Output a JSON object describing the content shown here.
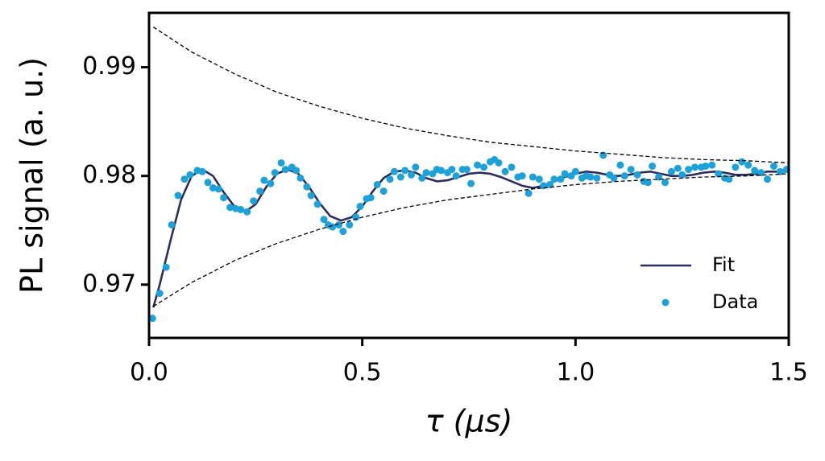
{
  "chart_data": {
    "type": "line",
    "xlabel": "τ (μs)",
    "ylabel": "PL signal (a. u.)",
    "xlim": [
      0,
      1.5
    ],
    "ylim": [
      0.9651,
      0.995
    ],
    "xticks": [
      {
        "value": 0,
        "label": "0.0"
      },
      0.5,
      {
        "value": 1,
        "label": "1.0"
      },
      1.5
    ],
    "yticks": [
      0.97,
      0.98,
      0.99
    ],
    "legend": "lower right",
    "series": [
      {
        "name": "Fit",
        "color": "#2b2d5c",
        "style": "solid",
        "x": [
          0.01,
          0.025,
          0.05,
          0.075,
          0.1,
          0.125,
          0.15,
          0.175,
          0.2,
          0.225,
          0.25,
          0.275,
          0.3,
          0.325,
          0.35,
          0.375,
          0.4,
          0.425,
          0.45,
          0.475,
          0.5,
          0.525,
          0.55,
          0.575,
          0.6,
          0.625,
          0.65,
          0.675,
          0.7,
          0.725,
          0.75,
          0.775,
          0.8,
          0.825,
          0.85,
          0.875,
          0.9,
          0.925,
          0.95,
          0.975,
          1.0,
          1.025,
          1.05,
          1.075,
          1.1,
          1.125,
          1.15,
          1.175,
          1.2,
          1.225,
          1.25,
          1.275,
          1.3,
          1.325,
          1.35,
          1.375,
          1.4,
          1.425,
          1.45,
          1.475,
          1.5
        ],
        "values": [
          0.9679,
          0.97,
          0.974,
          0.9778,
          0.98,
          0.9806,
          0.98,
          0.9785,
          0.9772,
          0.9767,
          0.9774,
          0.979,
          0.9802,
          0.9806,
          0.9802,
          0.979,
          0.9775,
          0.9763,
          0.9759,
          0.9762,
          0.9772,
          0.9786,
          0.9798,
          0.9804,
          0.9805,
          0.9803,
          0.9798,
          0.9795,
          0.9796,
          0.9799,
          0.9802,
          0.9803,
          0.9802,
          0.9799,
          0.9795,
          0.9791,
          0.9789,
          0.9791,
          0.9795,
          0.9799,
          0.9802,
          0.9804,
          0.9803,
          0.9801,
          0.98,
          0.9801,
          0.9803,
          0.9804,
          0.9802,
          0.98,
          0.98,
          0.9801,
          0.9803,
          0.9804,
          0.9803,
          0.9801,
          0.9801,
          0.9802,
          0.9804,
          0.9804,
          0.9804
        ]
      },
      {
        "name": "Data",
        "color": "#1ea1d8",
        "style": "dots",
        "x": [
          0.008,
          0.025,
          0.04,
          0.053,
          0.068,
          0.083,
          0.096,
          0.113,
          0.125,
          0.138,
          0.15,
          0.163,
          0.175,
          0.19,
          0.203,
          0.215,
          0.23,
          0.245,
          0.26,
          0.27,
          0.285,
          0.295,
          0.31,
          0.32,
          0.335,
          0.345,
          0.355,
          0.37,
          0.38,
          0.395,
          0.41,
          0.42,
          0.43,
          0.445,
          0.455,
          0.47,
          0.485,
          0.495,
          0.51,
          0.52,
          0.535,
          0.55,
          0.565,
          0.575,
          0.59,
          0.6,
          0.615,
          0.625,
          0.64,
          0.65,
          0.665,
          0.675,
          0.685,
          0.7,
          0.71,
          0.72,
          0.735,
          0.745,
          0.755,
          0.77,
          0.785,
          0.8,
          0.81,
          0.82,
          0.835,
          0.85,
          0.865,
          0.875,
          0.89,
          0.9,
          0.915,
          0.925,
          0.94,
          0.95,
          0.965,
          0.975,
          0.99,
          1.0,
          1.015,
          1.025,
          1.035,
          1.05,
          1.065,
          1.08,
          1.09,
          1.105,
          1.115,
          1.13,
          1.145,
          1.16,
          1.17,
          1.18,
          1.195,
          1.21,
          1.225,
          1.24,
          1.25,
          1.265,
          1.28,
          1.295,
          1.305,
          1.32,
          1.335,
          1.35,
          1.36,
          1.375,
          1.39,
          1.405,
          1.42,
          1.435,
          1.45,
          1.465,
          1.48,
          1.495
        ],
        "values": [
          0.9669,
          0.9692,
          0.9716,
          0.9755,
          0.9782,
          0.9797,
          0.9801,
          0.9805,
          0.9804,
          0.9794,
          0.9789,
          0.9788,
          0.978,
          0.9771,
          0.977,
          0.9769,
          0.9767,
          0.9777,
          0.9786,
          0.9796,
          0.9793,
          0.9803,
          0.9812,
          0.9806,
          0.9808,
          0.9805,
          0.9798,
          0.979,
          0.9782,
          0.9774,
          0.976,
          0.9755,
          0.9753,
          0.9755,
          0.9749,
          0.9755,
          0.9762,
          0.9772,
          0.9779,
          0.978,
          0.9792,
          0.9786,
          0.9797,
          0.9804,
          0.9799,
          0.9805,
          0.9801,
          0.9808,
          0.9798,
          0.9803,
          0.9802,
          0.9806,
          0.9805,
          0.9803,
          0.9806,
          0.98,
          0.9806,
          0.9806,
          0.9793,
          0.981,
          0.9808,
          0.9813,
          0.9815,
          0.9812,
          0.9804,
          0.9808,
          0.9799,
          0.98,
          0.9784,
          0.9799,
          0.9797,
          0.9791,
          0.9792,
          0.9797,
          0.9797,
          0.9802,
          0.98,
          0.9804,
          0.9798,
          0.98,
          0.9799,
          0.9798,
          0.9819,
          0.9801,
          0.9798,
          0.981,
          0.98,
          0.9806,
          0.9801,
          0.9795,
          0.9794,
          0.9809,
          0.9799,
          0.9794,
          0.9804,
          0.9807,
          0.9801,
          0.9806,
          0.9808,
          0.9808,
          0.9809,
          0.981,
          0.9802,
          0.9798,
          0.9797,
          0.9808,
          0.9813,
          0.981,
          0.9805,
          0.9803,
          0.9797,
          0.9809,
          0.9804,
          0.9806
        ]
      },
      {
        "color": "#000000",
        "style": "dashed",
        "x": [
          0.01,
          0.1,
          0.2,
          0.3,
          0.4,
          0.5,
          0.6,
          0.7,
          0.8,
          0.9,
          1.0,
          1.1,
          1.2,
          1.3,
          1.4,
          1.5
        ],
        "values": [
          0.9937,
          0.9914,
          0.9894,
          0.9877,
          0.9864,
          0.9853,
          0.9844,
          0.9837,
          0.9831,
          0.9827,
          0.9823,
          0.982,
          0.9817,
          0.9815,
          0.9814,
          0.9812
        ]
      },
      {
        "color": "#000000",
        "style": "dashed",
        "x": [
          0.01,
          0.1,
          0.2,
          0.3,
          0.4,
          0.5,
          0.6,
          0.7,
          0.8,
          0.9,
          1.0,
          1.1,
          1.2,
          1.3,
          1.4,
          1.5
        ],
        "values": [
          0.968,
          0.9702,
          0.9722,
          0.9738,
          0.9751,
          0.9762,
          0.9771,
          0.9778,
          0.9783,
          0.9788,
          0.9792,
          0.9795,
          0.9797,
          0.9799,
          0.98,
          0.9802
        ]
      }
    ]
  }
}
